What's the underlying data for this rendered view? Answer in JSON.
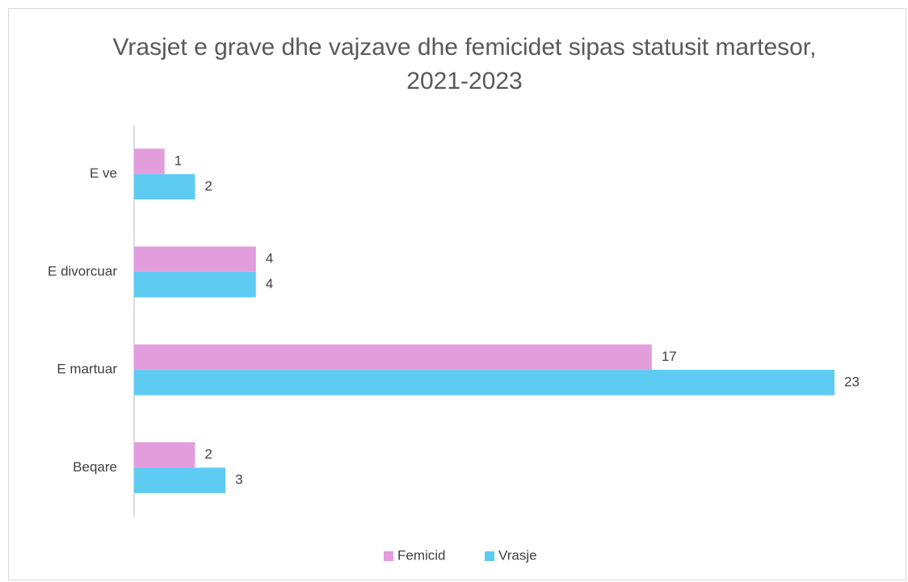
{
  "chart_data": {
    "type": "bar",
    "orientation": "horizontal",
    "title": "Vrasjet e grave dhe vajzave dhe femicidet sipas statusit martesor, 2021-2023",
    "categories": [
      "E ve",
      "E divorcuar",
      "E martuar",
      "Beqare"
    ],
    "series": [
      {
        "name": "Femicid",
        "color": "#e29ddd",
        "values": [
          1,
          4,
          17,
          2
        ]
      },
      {
        "name": "Vrasje",
        "color": "#5ecbf2",
        "values": [
          2,
          4,
          23,
          3
        ]
      }
    ],
    "legend": "bottom"
  }
}
